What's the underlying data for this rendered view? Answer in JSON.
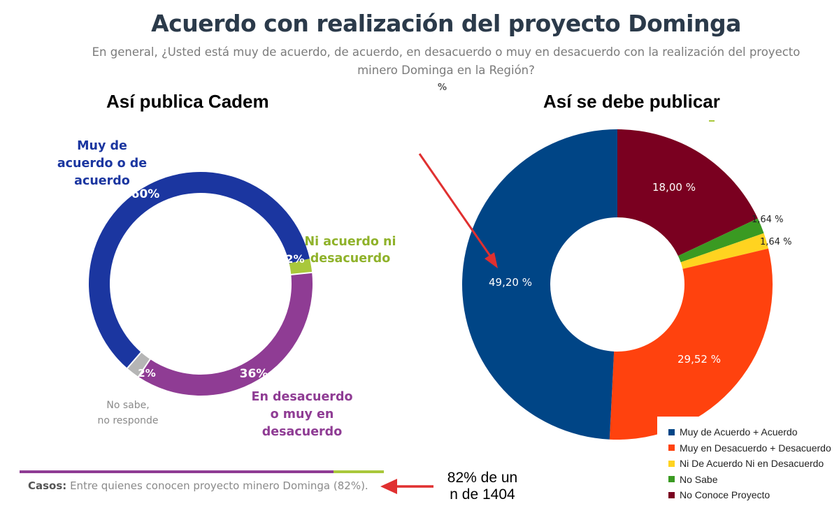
{
  "title": "Acuerdo con realización del proyecto Dominga",
  "subtitle_line1": "En general, ¿Usted está muy de acuerdo, de acuerdo, en desacuerdo o muy en desacuerdo con la realización del proyecto",
  "subtitle_line2": "minero Dominga en la Región?",
  "percent_symbol": "%",
  "left_heading": "Así publica Cadem",
  "right_heading": "Así se debe publicar",
  "chart_data": [
    {
      "type": "pie",
      "donut": true,
      "slices": [
        {
          "label_lines": [
            "Muy de",
            "acuerdo o de",
            "acuerdo"
          ],
          "value": 60,
          "value_label": "60%",
          "color": "#1b36a0",
          "label_color": "#1b36a0"
        },
        {
          "label_lines": [
            "Ni acuerdo ni",
            "desacuerdo"
          ],
          "value": 2,
          "value_label": "2%",
          "color": "#a9c83b",
          "label_color": "#8fb22a"
        },
        {
          "label_lines": [
            "En desacuerdo",
            "o muy en",
            "desacuerdo"
          ],
          "value": 36,
          "value_label": "36%",
          "color": "#8f3c94",
          "label_color": "#8f3c94"
        },
        {
          "label_lines": [
            "No sabe,",
            "no responde"
          ],
          "value": 2,
          "value_label": "2%",
          "color": "#b5b5b5",
          "label_color": "#8a8a8a"
        }
      ]
    },
    {
      "type": "pie",
      "donut": true,
      "legend_position": "bottom-right",
      "slices": [
        {
          "label": "No Conoce Proyecto",
          "value": 18.0,
          "value_label": "18,00 %",
          "color": "#7a0020"
        },
        {
          "label": "No Sabe",
          "value": 1.64,
          "value_label": "1,64 %",
          "color": "#3a9a22"
        },
        {
          "label": "Ni De Acuerdo Ni en Desacuerdo",
          "value": 1.64,
          "value_label": "1,64 %",
          "color": "#ffd320"
        },
        {
          "label": "Muy en Desacuerdo + Desacuerdo",
          "value": 29.52,
          "value_label": "29,52 %",
          "color": "#ff420e"
        },
        {
          "label": "Muy de Acuerdo + Acuerdo",
          "value": 49.2,
          "value_label": "49,20 %",
          "color": "#004586"
        }
      ],
      "legend_order": [
        "Muy de Acuerdo + Acuerdo",
        "Muy en Desacuerdo + Desacuerdo",
        "Ni De Acuerdo Ni en Desacuerdo",
        "No Sabe",
        "No Conoce Proyecto"
      ]
    }
  ],
  "casos_label": "Casos:",
  "casos_text": "Entre quienes conocen proyecto minero Dominga (82%).",
  "note_line1": "82% de un",
  "note_line2": "n de 1404",
  "colors": {
    "arrow": "#e03030"
  }
}
